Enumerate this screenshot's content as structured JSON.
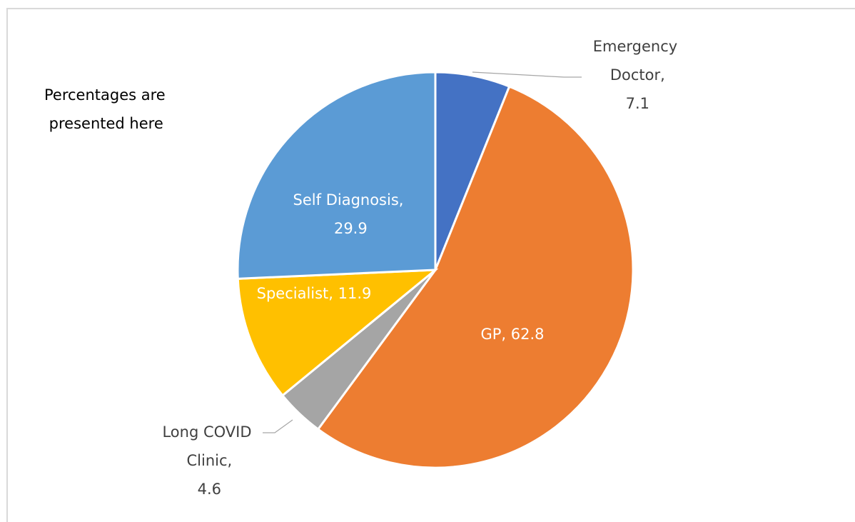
{
  "chart_data": {
    "type": "pie",
    "annotation": "Percentages are presented here",
    "values": [
      7.1,
      62.8,
      4.6,
      11.9,
      29.9
    ],
    "value_labels": [
      "Emergency Doctor, 7.1",
      "GP, 62.8",
      "Long COVID Clinic, 4.6",
      "Specialist, 11.9",
      "Self Diagnosis, 29.9"
    ],
    "colors": [
      "#4472c4",
      "#ed7d31",
      "#a5a5a5",
      "#ffc000",
      "#5b9bd5"
    ]
  }
}
